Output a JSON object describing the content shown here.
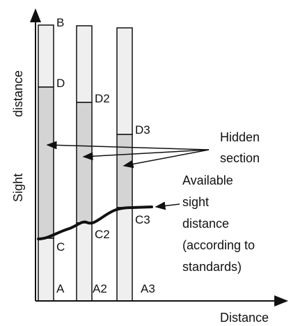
{
  "axes": {
    "x_label": "Distance",
    "y_label_1": "Sight",
    "y_label_2": "distance"
  },
  "columns": [
    {
      "top_label": "B",
      "mid_label": "D",
      "low_label": "C",
      "base_label": "A"
    },
    {
      "top_label": "",
      "mid_label": "D2",
      "low_label": "C2",
      "base_label": "A2"
    },
    {
      "top_label": "",
      "mid_label": "D3",
      "low_label": "C3",
      "base_label": "A3"
    }
  ],
  "annotations": {
    "hidden_line_1": "Hidden",
    "hidden_line_2": "section",
    "available_line_1": "Available",
    "available_line_2": "sight",
    "available_line_3": "distance",
    "available_line_4": "(according to",
    "available_line_5": "standards)"
  },
  "colors": {
    "column_light": "#efefef",
    "column_hidden": "#d4d4d4",
    "stroke": "#111111"
  }
}
